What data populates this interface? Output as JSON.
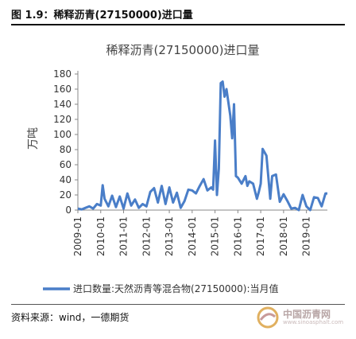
{
  "figure": {
    "label": "图 1.9：稀释沥青(27150000)进口量",
    "source": "资料来源：wind，一德期货",
    "watermark": "中国沥青网",
    "watermark_sub": "www.sinoasphalt.com"
  },
  "chart_data": {
    "type": "line",
    "title": "稀释沥青(27150000)进口量",
    "ylabel": "万吨",
    "xlabel": "",
    "ylim": [
      0,
      180
    ],
    "yticks": [
      0,
      20,
      40,
      60,
      80,
      100,
      120,
      140,
      160,
      180
    ],
    "xlim": [
      "2009-01",
      "2019-12"
    ],
    "xticks": [
      "2009-01",
      "2010-01",
      "2011-01",
      "2012-01",
      "2013-01",
      "2014-01",
      "2015-01",
      "2016-01",
      "2017-01",
      "2018-01",
      "2019-01"
    ],
    "grid": false,
    "legend_position": "bottom",
    "line_color": "#4a7ec8",
    "series": [
      {
        "name": "进口数量:天然沥青等混合物(27150000):当月值",
        "x": [
          "2009-01",
          "2009-03",
          "2009-05",
          "2009-07",
          "2009-09",
          "2009-11",
          "2010-01",
          "2010-02",
          "2010-03",
          "2010-05",
          "2010-07",
          "2010-09",
          "2010-11",
          "2011-01",
          "2011-03",
          "2011-05",
          "2011-07",
          "2011-09",
          "2011-11",
          "2012-01",
          "2012-03",
          "2012-05",
          "2012-07",
          "2012-09",
          "2012-11",
          "2013-01",
          "2013-03",
          "2013-05",
          "2013-07",
          "2013-09",
          "2013-11",
          "2014-01",
          "2014-03",
          "2014-05",
          "2014-07",
          "2014-09",
          "2014-11",
          "2014-12",
          "2015-01",
          "2015-02",
          "2015-03",
          "2015-04",
          "2015-05",
          "2015-06",
          "2015-07",
          "2015-09",
          "2015-10",
          "2015-11",
          "2015-12",
          "2016-01",
          "2016-03",
          "2016-05",
          "2016-06",
          "2016-07",
          "2016-09",
          "2016-11",
          "2016-12",
          "2017-01",
          "2017-02",
          "2017-04",
          "2017-06",
          "2017-07",
          "2017-09",
          "2017-11",
          "2018-01",
          "2018-03",
          "2018-05",
          "2018-07",
          "2018-09",
          "2018-11",
          "2019-01",
          "2019-03",
          "2019-05",
          "2019-07",
          "2019-09",
          "2019-11",
          "2019-12"
        ],
        "values": [
          2,
          1,
          3,
          5,
          2,
          8,
          6,
          33,
          15,
          5,
          19,
          4,
          18,
          2,
          22,
          6,
          14,
          3,
          8,
          5,
          24,
          29,
          10,
          32,
          8,
          30,
          10,
          23,
          3,
          12,
          27,
          26,
          22,
          32,
          41,
          26,
          30,
          27,
          92,
          20,
          55,
          168,
          170,
          150,
          160,
          125,
          95,
          140,
          45,
          43,
          35,
          45,
          32,
          38,
          35,
          15,
          24,
          35,
          81,
          72,
          15,
          45,
          47,
          11,
          21,
          12,
          2,
          3,
          0,
          20,
          5,
          0,
          17,
          16,
          5,
          22,
          22
        ]
      }
    ]
  }
}
